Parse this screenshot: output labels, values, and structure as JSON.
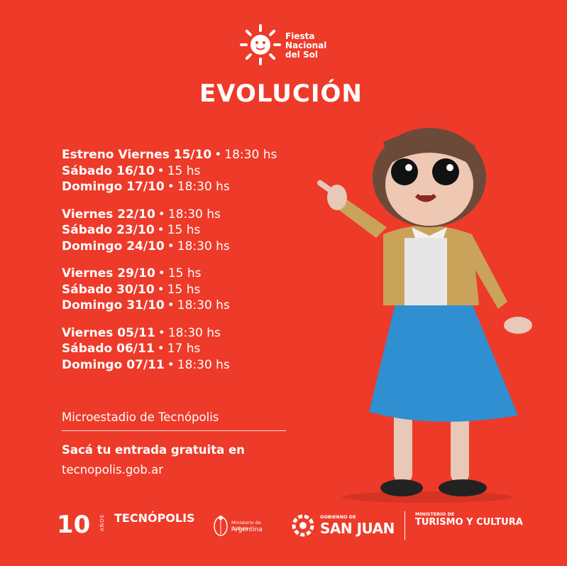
{
  "brand": {
    "line1": "Fiesta",
    "line2": "Nacional",
    "line3": "del Sol"
  },
  "title": "EVOLUCIÓN",
  "schedule": [
    [
      {
        "day": "Estreno Viernes 15/10",
        "time": "18:30 hs"
      },
      {
        "day": "Sábado 16/10",
        "time": "15 hs"
      },
      {
        "day": "Domingo 17/10",
        "time": "18:30 hs"
      }
    ],
    [
      {
        "day": "Viernes 22/10",
        "time": "18:30 hs"
      },
      {
        "day": "Sábado 23/10",
        "time": "15 hs"
      },
      {
        "day": "Domingo 24/10",
        "time": "18:30 hs"
      }
    ],
    [
      {
        "day": "Viernes 29/10",
        "time": "15 hs"
      },
      {
        "day": "Sábado 30/10",
        "time": "15 hs"
      },
      {
        "day": "Domingo 31/10",
        "time": "18:30 hs"
      }
    ],
    [
      {
        "day": "Viernes 05/11",
        "time": "18:30 hs"
      },
      {
        "day": "Sábado 06/11",
        "time": "17 hs"
      },
      {
        "day": "Domingo 07/11",
        "time": "18:30 hs"
      }
    ]
  ],
  "venue": "Microestadio de Tecnópolis",
  "cta": "Sacá tu entrada gratuita en",
  "site": "tecnopolis.gob.ar",
  "footer": {
    "anos_number": "10",
    "anos_label": "AÑOS",
    "tecnopolis": "TECNÓPOLIS",
    "ministerio_cultura_line1": "Ministerio de Cultura",
    "ministerio_cultura_line2": "Argentina",
    "sanjuan_gobierno": "GOBIERNO DE",
    "sanjuan_name": "SAN JUAN",
    "turismo_ministerio": "MINISTERIO DE",
    "turismo_name": "TURISMO Y CULTURA"
  },
  "colors": {
    "background": "#ee3a29",
    "text": "#ffffff",
    "skirt": "#2f8fd0",
    "cardigan": "#c9a35a"
  },
  "icons": {
    "sun_logo": "sun-logo-icon",
    "shield": "argentina-shield-icon",
    "ring": "san-juan-ring-icon"
  }
}
